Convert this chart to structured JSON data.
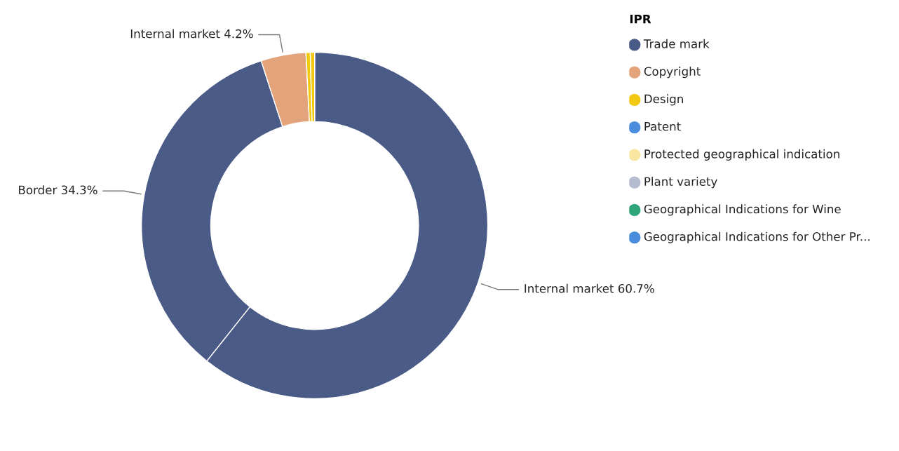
{
  "chart_data": [
    {
      "type": "donut",
      "categories": [
        "Internal market",
        "Border",
        "Internal market",
        null,
        null
      ],
      "values": [
        60.7,
        34.3,
        4.2,
        0.4,
        0.4
      ],
      "colors": [
        "#4a5b87",
        "#4a5b87",
        "#e3a37b",
        "#f2c811",
        "#f2c811"
      ],
      "value_labels": [
        "60.7%",
        "34.3%",
        "4.2%",
        null,
        null
      ]
    },
    {
      "type": "other",
      "title": "IPR",
      "categories": [
        "Trade mark",
        "Copyright",
        "Design",
        "Patent",
        "Protected geographical indication",
        "Plant variety",
        "Geographical Indications for Wine",
        "Geographical Indications for Other Pr..."
      ],
      "colors": [
        "#4a5b87",
        "#e3a37b",
        "#f2c811",
        "#4a8ddc",
        "#f9e6a1",
        "#b6bccf",
        "#2fa57a",
        "#4a8ddc"
      ]
    }
  ]
}
